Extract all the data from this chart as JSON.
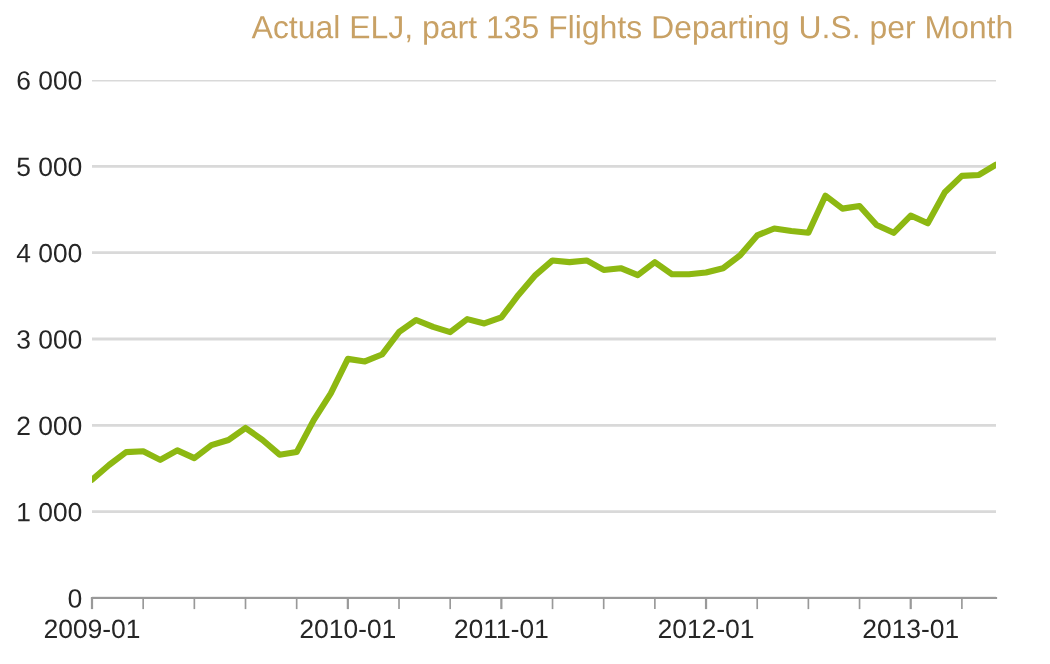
{
  "chart_data": {
    "type": "line",
    "title": "Actual ELJ, part 135 Flights Departing U.S. per Month",
    "categories": [
      "2009-01",
      null,
      null,
      null,
      null,
      null,
      null,
      null,
      null,
      null,
      null,
      null,
      null,
      null,
      null,
      "2010-01",
      null,
      null,
      null,
      null,
      null,
      null,
      null,
      null,
      "2011-01",
      null,
      null,
      null,
      null,
      null,
      null,
      null,
      null,
      null,
      null,
      null,
      "2012-01",
      null,
      null,
      null,
      null,
      null,
      null,
      null,
      null,
      null,
      null,
      null,
      "2013-01",
      null,
      null,
      null,
      null,
      null
    ],
    "series": [
      {
        "color": "#8db812",
        "values": [
          1370,
          1540,
          1690,
          1700,
          1600,
          1710,
          1620,
          1770,
          1830,
          1970,
          1830,
          1660,
          1690,
          2060,
          2370,
          2770,
          2740,
          2820,
          3080,
          3220,
          3140,
          3080,
          3230,
          3180,
          3250,
          3510,
          3740,
          3910,
          3890,
          3910,
          3800,
          3820,
          3740,
          3890,
          3750,
          3750,
          3770,
          3820,
          3970,
          4200,
          4280,
          4250,
          4230,
          4660,
          4510,
          4540,
          4320,
          4230,
          4430,
          4340,
          4700,
          4890,
          4900,
          5020
        ]
      }
    ],
    "ylim": [
      0,
      6000
    ],
    "yticks": [
      {
        "value": 0,
        "label": "0"
      },
      {
        "value": 1000,
        "label": "1 000"
      },
      {
        "value": 2000,
        "label": "2 000"
      },
      {
        "value": 3000,
        "label": "3 000"
      },
      {
        "value": 4000,
        "label": "4 000"
      },
      {
        "value": 5000,
        "label": "5 000"
      },
      {
        "value": 6000,
        "label": "6 000"
      }
    ],
    "grid": "y",
    "legend": false,
    "marker": "none",
    "line_style": "solid"
  }
}
